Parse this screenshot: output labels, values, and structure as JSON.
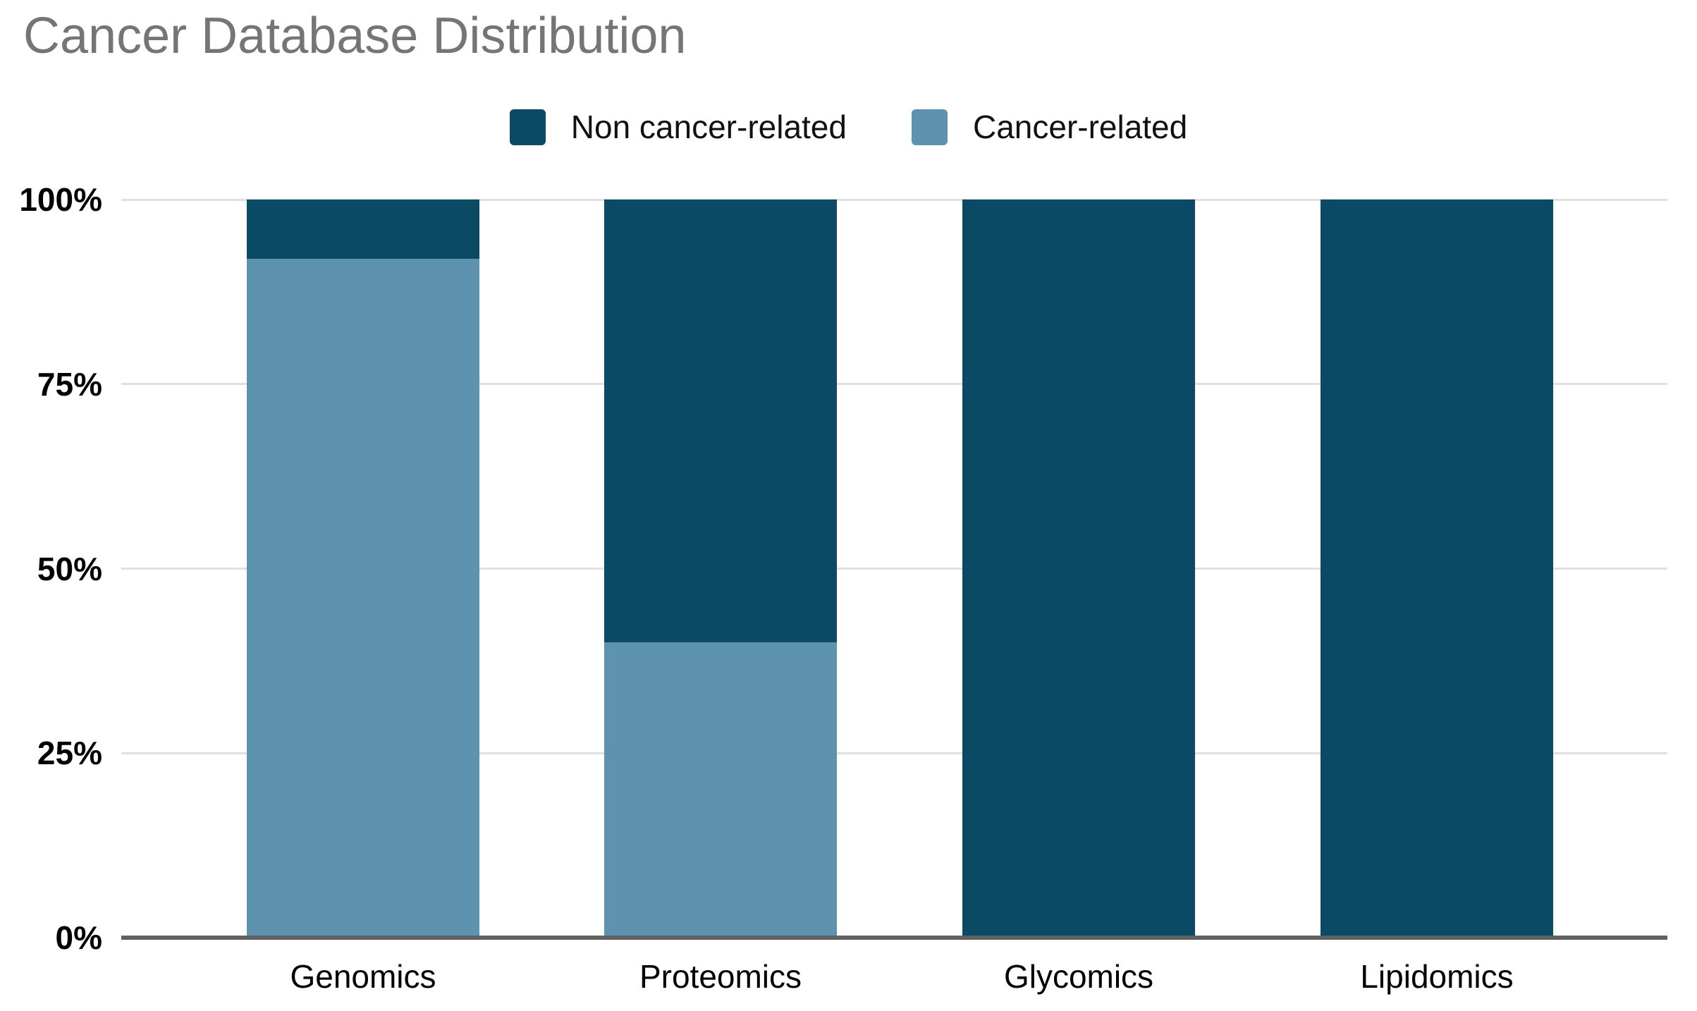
{
  "title": "Cancer Database Distribution",
  "colors": {
    "background": "#ffffff",
    "title": "#757575",
    "grid_line": "#e0e0e0",
    "axis_line": "#616161",
    "axis_label": "#000000",
    "legend_text": "#111111",
    "series_non_cancer": "#0b4a64",
    "series_cancer": "#5d93ae"
  },
  "chart_data": {
    "type": "bar",
    "stacked": true,
    "normalized_percent": true,
    "title": "Cancer Database Distribution",
    "xlabel": "",
    "ylabel": "",
    "categories": [
      "Genomics",
      "Proteomics",
      "Glycomics",
      "Lipidomics"
    ],
    "series": [
      {
        "name": "Non cancer-related",
        "color": "#0b4a64",
        "values": [
          8,
          60,
          100,
          100
        ]
      },
      {
        "name": "Cancer-related",
        "color": "#5d93ae",
        "values": [
          92,
          40,
          0,
          0
        ]
      }
    ],
    "stack_order_bottom_to_top": [
      "Cancer-related",
      "Non cancer-related"
    ],
    "ylim": [
      0,
      100
    ],
    "y_ticks": [
      100,
      75,
      50,
      25,
      0
    ],
    "y_tick_labels": [
      "100%",
      "75%",
      "50%",
      "25%",
      "0%"
    ],
    "grid": true,
    "legend_position": "top-center"
  }
}
